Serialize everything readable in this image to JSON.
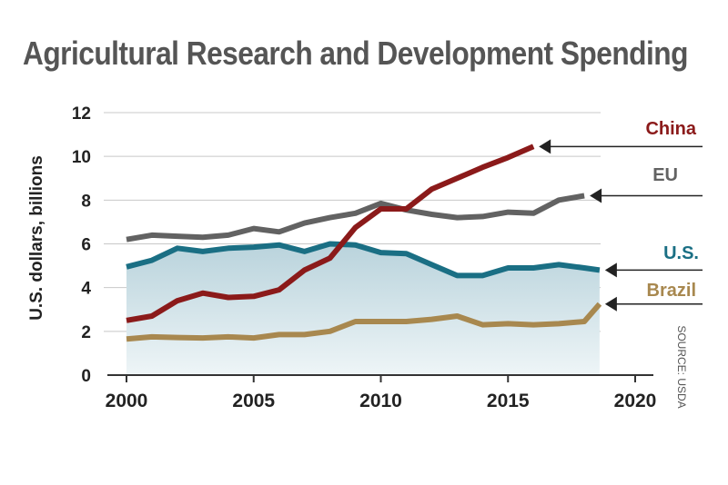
{
  "chart_data": {
    "type": "line",
    "title": "Agricultural Research and Development Spending",
    "xlabel": "",
    "ylabel": "U.S. dollars, billions",
    "source": "SOURCE: USDA",
    "xlim": [
      2000,
      2020
    ],
    "ylim": [
      0,
      12
    ],
    "x_ticks": [
      2000,
      2005,
      2010,
      2015,
      2020
    ],
    "y_ticks": [
      0,
      2,
      4,
      6,
      8,
      10,
      12
    ],
    "grid": "horizontal",
    "series": [
      {
        "name": "China",
        "color": "#8b1a1a",
        "x": [
          2000,
          2001,
          2002,
          2003,
          2004,
          2005,
          2006,
          2007,
          2008,
          2009,
          2010,
          2011,
          2012,
          2013,
          2014,
          2015,
          2016
        ],
        "values": [
          2.5,
          2.7,
          3.4,
          3.75,
          3.55,
          3.6,
          3.9,
          4.8,
          5.35,
          6.75,
          7.6,
          7.6,
          8.5,
          9.0,
          9.5,
          9.95,
          10.45
        ]
      },
      {
        "name": "EU",
        "color": "#626262",
        "x": [
          2000,
          2001,
          2002,
          2003,
          2004,
          2005,
          2006,
          2007,
          2008,
          2009,
          2010,
          2011,
          2012,
          2013,
          2014,
          2015,
          2016,
          2017,
          2018
        ],
        "values": [
          6.2,
          6.4,
          6.35,
          6.3,
          6.4,
          6.7,
          6.55,
          6.95,
          7.2,
          7.4,
          7.85,
          7.55,
          7.35,
          7.2,
          7.25,
          7.45,
          7.4,
          8.0,
          8.2
        ]
      },
      {
        "name": "U.S.",
        "color": "#1a6f84",
        "x": [
          2000,
          2001,
          2002,
          2003,
          2004,
          2005,
          2006,
          2007,
          2008,
          2009,
          2010,
          2011,
          2012,
          2013,
          2014,
          2015,
          2016,
          2017,
          2018,
          2018.6
        ],
        "values": [
          4.95,
          5.25,
          5.8,
          5.65,
          5.8,
          5.85,
          5.95,
          5.65,
          6.0,
          5.95,
          5.6,
          5.55,
          5.05,
          4.55,
          4.55,
          4.9,
          4.9,
          5.05,
          4.9,
          4.8
        ]
      },
      {
        "name": "Brazil",
        "color": "#a8884f",
        "x": [
          2000,
          2001,
          2002,
          2003,
          2004,
          2005,
          2006,
          2007,
          2008,
          2009,
          2010,
          2011,
          2012,
          2013,
          2014,
          2015,
          2016,
          2017,
          2018,
          2018.6
        ],
        "values": [
          1.65,
          1.75,
          1.72,
          1.7,
          1.75,
          1.7,
          1.85,
          1.85,
          2.0,
          2.45,
          2.45,
          2.45,
          2.55,
          2.7,
          2.3,
          2.35,
          2.3,
          2.35,
          2.45,
          3.25
        ]
      }
    ]
  },
  "colors": {
    "title": "#555555",
    "area_top": "#b9d3dc",
    "area_bottom": "#eef5f7",
    "grid": "#c8c8c8",
    "axis": "#333333",
    "callout_line": "#222222"
  }
}
